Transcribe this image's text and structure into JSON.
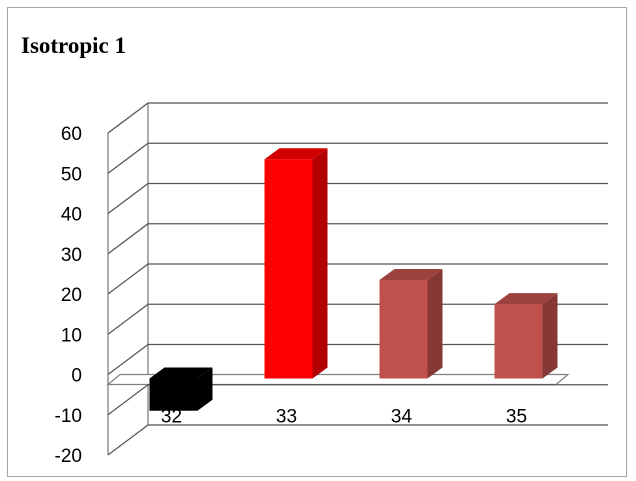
{
  "chart_data": {
    "type": "bar",
    "title": "Isotropic 1",
    "xlabel": "",
    "ylabel": "",
    "categories": [
      "32",
      "33",
      "34",
      "35"
    ],
    "values": [
      -9,
      52,
      22,
      16
    ],
    "bar_colors": [
      "#000000",
      "#ff0000",
      "#c0504d",
      "#c0504d"
    ],
    "ylim": [
      -20,
      60
    ],
    "yticks": [
      -20,
      -10,
      0,
      10,
      20,
      30,
      40,
      50,
      60
    ],
    "grid": true,
    "legend": "none",
    "style": "3d-column"
  }
}
